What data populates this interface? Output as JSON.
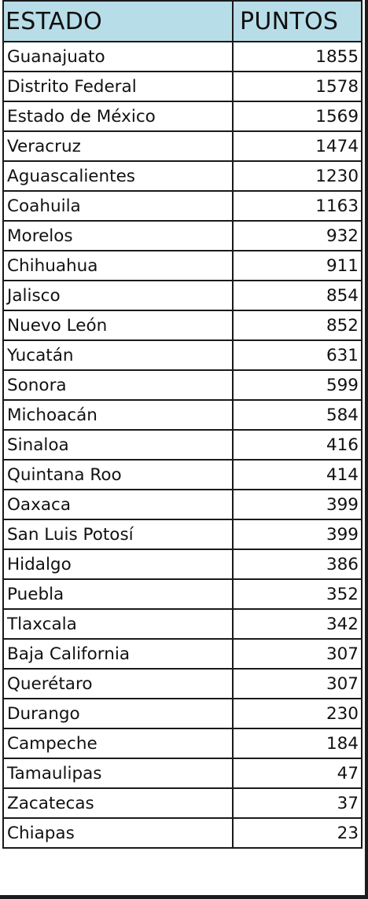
{
  "table": {
    "headers": {
      "state": "ESTADO",
      "points": "PUNTOS"
    },
    "rows": [
      {
        "state": "Guanajuato",
        "points": "1855"
      },
      {
        "state": "Distrito Federal",
        "points": "1578"
      },
      {
        "state": "Estado de México",
        "points": "1569"
      },
      {
        "state": "Veracruz",
        "points": "1474"
      },
      {
        "state": "Aguascalientes",
        "points": "1230"
      },
      {
        "state": "Coahuila",
        "points": "1163"
      },
      {
        "state": "Morelos",
        "points": "932"
      },
      {
        "state": "Chihuahua",
        "points": "911"
      },
      {
        "state": "Jalisco",
        "points": "854"
      },
      {
        "state": "Nuevo León",
        "points": "852"
      },
      {
        "state": "Yucatán",
        "points": "631"
      },
      {
        "state": "Sonora",
        "points": "599"
      },
      {
        "state": "Michoacán",
        "points": "584"
      },
      {
        "state": "Sinaloa",
        "points": "416"
      },
      {
        "state": "Quintana Roo",
        "points": "414"
      },
      {
        "state": "Oaxaca",
        "points": "399"
      },
      {
        "state": "San Luis Potosí",
        "points": "399"
      },
      {
        "state": "Hidalgo",
        "points": "386"
      },
      {
        "state": "Puebla",
        "points": "352"
      },
      {
        "state": "Tlaxcala",
        "points": "342"
      },
      {
        "state": "Baja California",
        "points": "307"
      },
      {
        "state": "Querétaro",
        "points": "307"
      },
      {
        "state": "Durango",
        "points": "230"
      },
      {
        "state": "Campeche",
        "points": "184"
      },
      {
        "state": "Tamaulipas",
        "points": "47"
      },
      {
        "state": "Zacatecas",
        "points": "37"
      },
      {
        "state": "Chiapas",
        "points": "23"
      }
    ]
  },
  "colors": {
    "header_background": "#b7dde8",
    "grid_lines": "#1a1a1a",
    "text": "#111111"
  }
}
